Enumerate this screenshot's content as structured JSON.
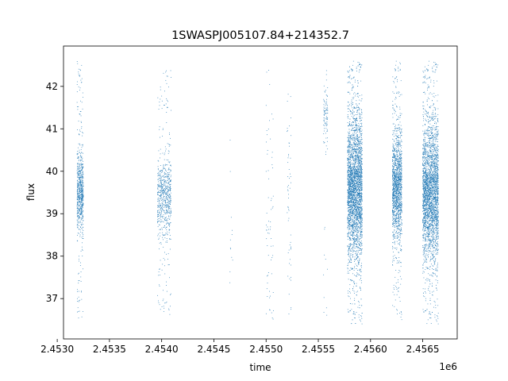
{
  "chart_data": {
    "type": "scatter",
    "title": "1SWASPJ005107.84+214352.7",
    "xlabel": "time",
    "ylabel": "flux",
    "x_offset_label": "1e6",
    "x_scale": 1000000,
    "xlim": [
      2.45306,
      2.45683
    ],
    "ylim": [
      36.05,
      42.95
    ],
    "x_ticks": [
      2.453,
      2.4535,
      2.454,
      2.4545,
      2.455,
      2.4555,
      2.456,
      2.4565
    ],
    "x_tick_labels": [
      "2.4530",
      "2.4535",
      "2.4540",
      "2.4545",
      "2.4550",
      "2.4555",
      "2.4560",
      "2.4565"
    ],
    "y_ticks": [
      37,
      38,
      39,
      40,
      41,
      42
    ],
    "y_tick_labels": [
      "37",
      "38",
      "39",
      "40",
      "41",
      "42"
    ],
    "grid": false,
    "marker_color": "#1f77b4",
    "clusters": [
      {
        "x_start": 2.45319,
        "x_end": 2.45325,
        "center": 39.5,
        "core_spread": 0.45,
        "tail_low": 36.5,
        "tail_high": 42.6,
        "count": 700
      },
      {
        "x_start": 2.45396,
        "x_end": 2.45409,
        "center": 39.4,
        "core_spread": 0.45,
        "tail_low": 36.6,
        "tail_high": 42.6,
        "count": 700
      },
      {
        "x_start": 2.45465,
        "x_end": 2.45468,
        "center": 38.5,
        "core_spread": 1.2,
        "tail_low": 36.5,
        "tail_high": 41.8,
        "count": 12
      },
      {
        "x_start": 2.455,
        "x_end": 2.45507,
        "center": 39.0,
        "core_spread": 2.0,
        "tail_low": 36.4,
        "tail_high": 42.6,
        "count": 80
      },
      {
        "x_start": 2.4552,
        "x_end": 2.45524,
        "center": 39.5,
        "core_spread": 1.8,
        "tail_low": 36.4,
        "tail_high": 41.9,
        "count": 60
      },
      {
        "x_start": 2.45555,
        "x_end": 2.45559,
        "center": 41.3,
        "core_spread": 0.35,
        "tail_low": 36.4,
        "tail_high": 42.4,
        "count": 100
      },
      {
        "x_start": 2.45578,
        "x_end": 2.45592,
        "center": 39.6,
        "core_spread": 0.8,
        "tail_low": 36.4,
        "tail_high": 42.6,
        "count": 3500
      },
      {
        "x_start": 2.45621,
        "x_end": 2.4563,
        "center": 39.6,
        "core_spread": 0.6,
        "tail_low": 36.5,
        "tail_high": 42.6,
        "count": 1500
      },
      {
        "x_start": 2.4565,
        "x_end": 2.45665,
        "center": 39.5,
        "core_spread": 0.75,
        "tail_low": 36.4,
        "tail_high": 42.6,
        "count": 3000
      }
    ]
  }
}
